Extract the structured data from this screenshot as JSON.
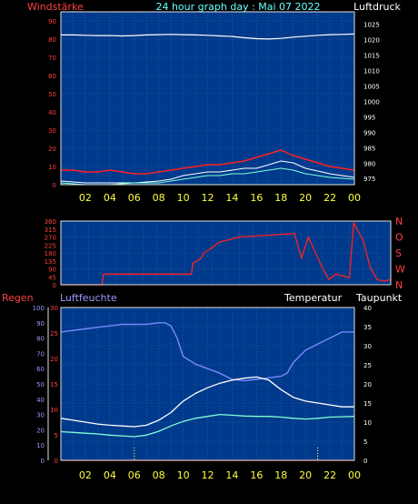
{
  "header": {
    "left_title": "Windstärke",
    "center_title": "24 hour graph day : Mai 07 2022",
    "right_title": "Luftdruck"
  },
  "colors": {
    "plot_bg": "#003a8c",
    "grid": "#4466aa",
    "frame": "#e0e0e0",
    "wind_speed": "#ff2020",
    "gust": "#ffffff",
    "wind_avg": "#7fffd4",
    "pressure": "#ffffff",
    "wind_dir": "#ff2020",
    "humidity": "#7788ff",
    "temperature": "#ffffff",
    "dewpoint": "#7fffd4",
    "rain": "#ff2020",
    "left_axis_text": "#ff4040",
    "x_axis_text": "#ffff40",
    "cyan_text": "#66ffff",
    "white_text": "#ffffff",
    "humidity_text": "#9999ff",
    "marker": "#ffff40"
  },
  "x_axis": {
    "hours": [
      "02",
      "04",
      "06",
      "08",
      "10",
      "12",
      "14",
      "16",
      "18",
      "20",
      "22",
      "00"
    ],
    "range": [
      0,
      24
    ]
  },
  "chart_data": [
    {
      "type": "line",
      "id": "wind_pressure",
      "ylabel_left": "Windstärke",
      "ylabel_right": "Luftdruck",
      "ylim_left": [
        0,
        95
      ],
      "yticks_left": [
        0,
        10,
        20,
        30,
        40,
        50,
        60,
        70,
        80,
        90
      ],
      "ylim_right": [
        973,
        1029
      ],
      "yticks_right": [
        975,
        980,
        985,
        990,
        995,
        1000,
        1005,
        1010,
        1015,
        1020,
        1025
      ],
      "grid": true,
      "series": [
        {
          "key": "pressure",
          "axis": "right",
          "x": [
            0,
            1,
            2,
            3,
            4,
            5,
            6,
            7,
            8,
            9,
            10,
            11,
            12,
            13,
            14,
            15,
            16,
            17,
            18,
            19,
            20,
            21,
            22,
            23,
            24
          ],
          "values": [
            1021.5,
            1021.5,
            1021.4,
            1021.3,
            1021.3,
            1021.2,
            1021.3,
            1021.5,
            1021.6,
            1021.7,
            1021.6,
            1021.5,
            1021.4,
            1021.2,
            1021.0,
            1020.6,
            1020.3,
            1020.2,
            1020.4,
            1020.8,
            1021.1,
            1021.4,
            1021.6,
            1021.7,
            1021.8
          ]
        },
        {
          "key": "wind_speed",
          "axis": "left",
          "x": [
            0,
            1,
            2,
            3,
            4,
            5,
            6,
            7,
            8,
            9,
            10,
            11,
            12,
            13,
            14,
            15,
            16,
            17,
            18,
            19,
            20,
            21,
            22,
            23,
            24
          ],
          "values": [
            8,
            8,
            7,
            7,
            8,
            7,
            6,
            6,
            7,
            8,
            9,
            10,
            11,
            11,
            12,
            13,
            15,
            17,
            19,
            16,
            14,
            12,
            10,
            9,
            8
          ]
        },
        {
          "key": "gust",
          "axis": "left",
          "x": [
            0,
            2,
            4,
            6,
            8,
            9,
            10,
            11,
            12,
            13,
            14,
            15,
            16,
            17,
            18,
            19,
            20,
            22,
            24
          ],
          "values": [
            2,
            1,
            1,
            1,
            2,
            3,
            5,
            6,
            7,
            7,
            8,
            9,
            9,
            11,
            13,
            12,
            9,
            6,
            4
          ]
        },
        {
          "key": "wind_avg",
          "axis": "left",
          "x": [
            0,
            2,
            4,
            6,
            8,
            9,
            10,
            11,
            12,
            13,
            14,
            15,
            16,
            17,
            18,
            19,
            20,
            22,
            24
          ],
          "values": [
            1,
            0,
            0,
            1,
            1,
            2,
            3,
            4,
            5,
            5,
            6,
            6,
            7,
            8,
            9,
            8,
            6,
            4,
            3
          ]
        }
      ]
    },
    {
      "type": "line",
      "id": "wind_direction",
      "ylim": [
        0,
        360
      ],
      "yticks": [
        0,
        45,
        90,
        135,
        180,
        225,
        270,
        315,
        360
      ],
      "direction_labels": [
        "N",
        "W",
        "S",
        "O",
        "N"
      ],
      "grid": true,
      "series": [
        {
          "key": "wind_dir",
          "x": [
            0,
            3,
            3.1,
            9.5,
            9.6,
            10.2,
            10.4,
            11,
            11.5,
            12,
            12.5,
            13,
            14,
            15,
            16,
            17,
            17.5,
            18,
            19,
            19.5,
            20,
            21,
            21.3,
            21.5,
            22,
            22.5,
            23,
            23.5,
            24
          ],
          "values": [
            0,
            0,
            60,
            60,
            120,
            150,
            180,
            210,
            240,
            250,
            260,
            270,
            275,
            280,
            285,
            290,
            150,
            270,
            100,
            30,
            60,
            40,
            350,
            320,
            250,
            100,
            30,
            20,
            30
          ]
        }
      ]
    },
    {
      "type": "line",
      "id": "temp_humidity",
      "ylabel_left_outer": "Regen",
      "ylabel_left_inner": "Luftfeuchte",
      "ylabel_temp": "Temperatur",
      "ylabel_right": "Taupunkt",
      "ylim_left": [
        0,
        100
      ],
      "yticks_left": [
        0,
        10,
        20,
        30,
        40,
        50,
        60,
        70,
        80,
        90,
        100
      ],
      "ylim_inner": [
        0,
        30
      ],
      "yticks_inner": [
        0,
        5,
        10,
        15,
        20,
        25,
        30
      ],
      "ylim_right": [
        0,
        40
      ],
      "yticks_right": [
        0,
        5,
        10,
        15,
        20,
        25,
        30,
        35,
        40
      ],
      "markers_x": [
        6,
        21
      ],
      "grid": true,
      "series": [
        {
          "key": "humidity",
          "axis": "left",
          "x": [
            0,
            1,
            2,
            3,
            4,
            5,
            6,
            7,
            8,
            8.5,
            9,
            9.5,
            10,
            11,
            12,
            13,
            14,
            15,
            16,
            17,
            18,
            18.5,
            19,
            20,
            21,
            22,
            23,
            24
          ],
          "values": [
            84,
            85,
            86,
            87,
            88,
            89,
            89,
            89,
            90,
            90,
            88,
            80,
            68,
            63,
            60,
            57,
            53,
            52,
            53,
            54,
            55,
            57,
            64,
            72,
            76,
            80,
            84,
            84
          ]
        },
        {
          "key": "temperature",
          "axis": "right",
          "x": [
            0,
            1,
            2,
            3,
            4,
            5,
            6,
            7,
            8,
            9,
            10,
            11,
            12,
            13,
            14,
            15,
            16,
            17,
            18,
            19,
            20,
            21,
            22,
            23,
            24
          ],
          "values": [
            11,
            10.5,
            10,
            9.5,
            9.2,
            9.0,
            8.8,
            9.2,
            10.5,
            12.5,
            15.5,
            17.5,
            19,
            20.2,
            21.0,
            21.5,
            21.8,
            21.0,
            18.5,
            16.5,
            15.5,
            15.0,
            14.5,
            14.0,
            14.0
          ]
        },
        {
          "key": "dewpoint",
          "axis": "right",
          "x": [
            0,
            1,
            2,
            3,
            4,
            5,
            6,
            7,
            8,
            9,
            10,
            11,
            12,
            13,
            14,
            15,
            16,
            17,
            18,
            19,
            20,
            21,
            22,
            23,
            24
          ],
          "values": [
            7.5,
            7.3,
            7.1,
            6.9,
            6.6,
            6.4,
            6.2,
            6.6,
            7.6,
            9.0,
            10.2,
            11.0,
            11.5,
            12.0,
            11.8,
            11.6,
            11.5,
            11.5,
            11.3,
            11.0,
            10.8,
            11.0,
            11.3,
            11.4,
            11.5
          ]
        },
        {
          "key": "rain",
          "axis": "inner",
          "x": [
            0,
            24
          ],
          "values": [
            0,
            0
          ]
        }
      ]
    }
  ]
}
